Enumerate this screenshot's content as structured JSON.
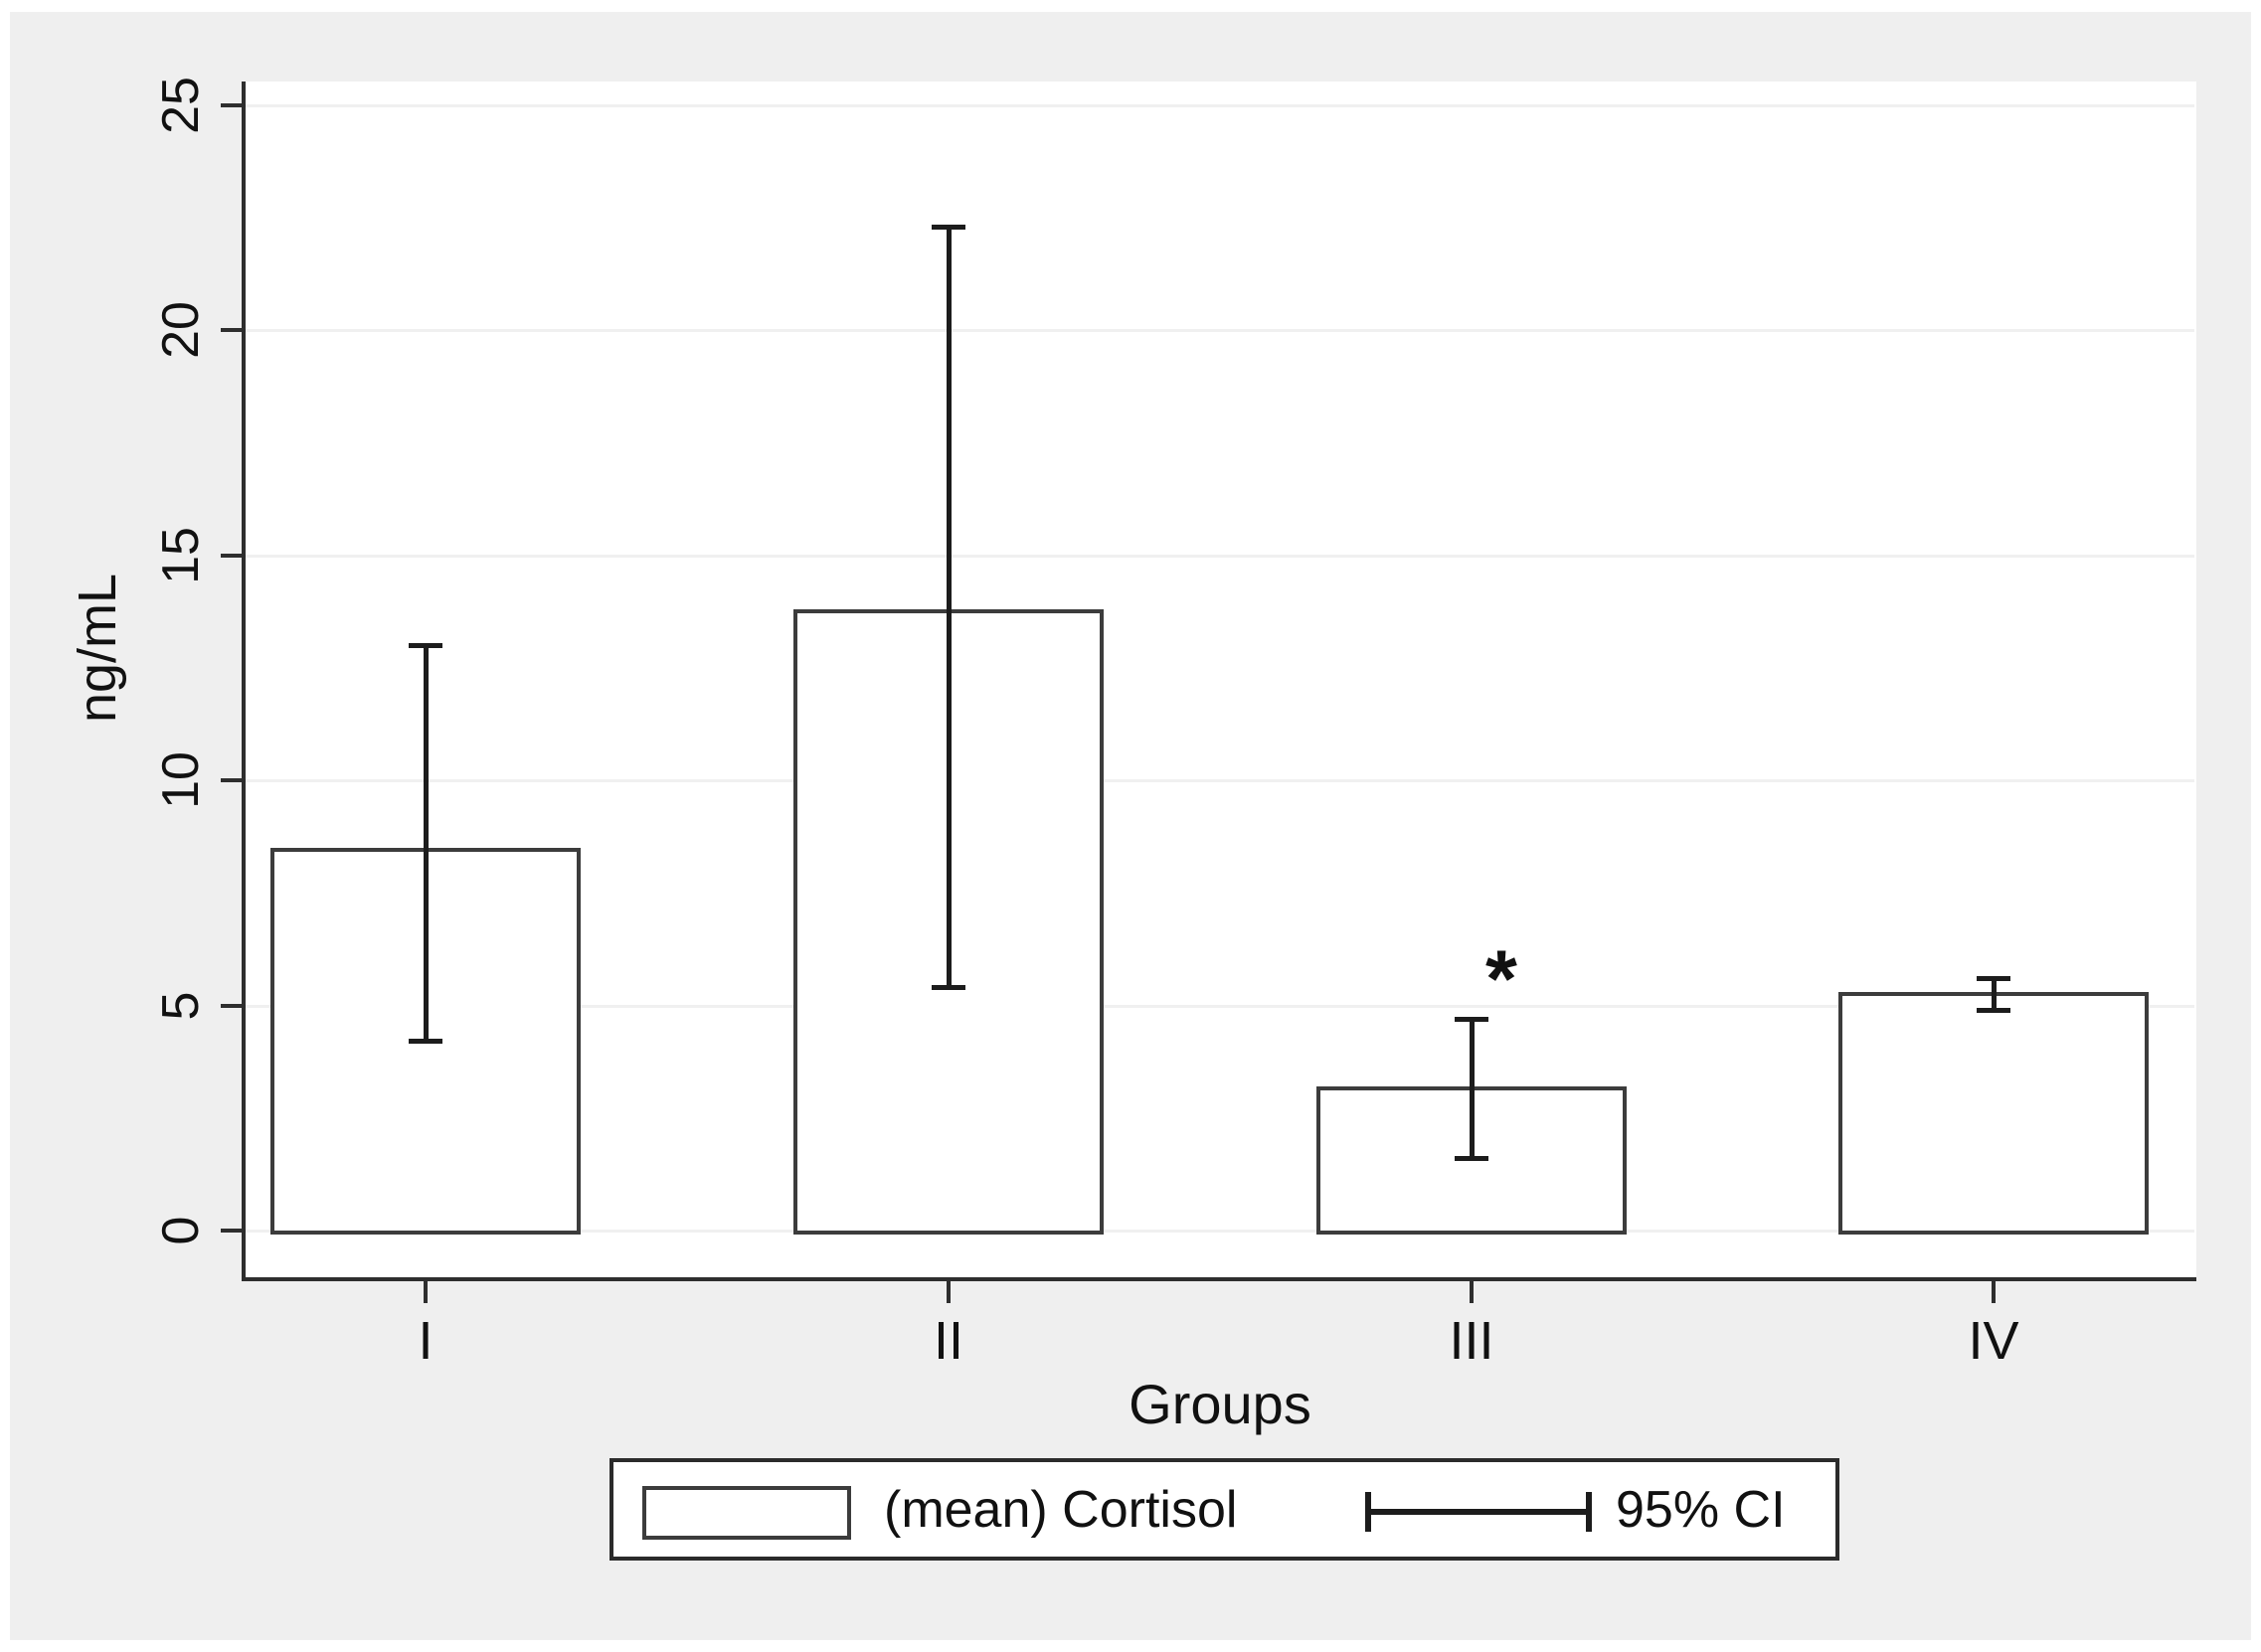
{
  "chart_data": {
    "type": "bar",
    "title": "",
    "categories": [
      "I",
      "II",
      "III",
      "IV"
    ],
    "series": [
      {
        "name": "(mean) Cortisol",
        "values": [
          8.5,
          13.8,
          3.2,
          5.3
        ]
      }
    ],
    "ci_95": [
      {
        "low": 4.2,
        "high": 13.0
      },
      {
        "low": 5.4,
        "high": 22.3
      },
      {
        "low": 1.6,
        "high": 4.7
      },
      {
        "low": 4.9,
        "high": 5.6
      }
    ],
    "ylabel": "ng/mL",
    "xlabel": "Groups",
    "yticks": [
      0,
      5,
      10,
      15,
      20,
      25
    ],
    "ylim": [
      0,
      25.8
    ],
    "grid": true,
    "bar_fill": "#ffffff",
    "bar_border": "#3c3c3c",
    "error_color": "#1c1c1c",
    "background": "#efefef",
    "plot_background": "#ffffff",
    "legend": {
      "position": "bottom",
      "entries": [
        "(mean) Cortisol",
        "95% CI"
      ]
    },
    "annotations": [
      {
        "text": "*",
        "category": "III"
      }
    ]
  }
}
